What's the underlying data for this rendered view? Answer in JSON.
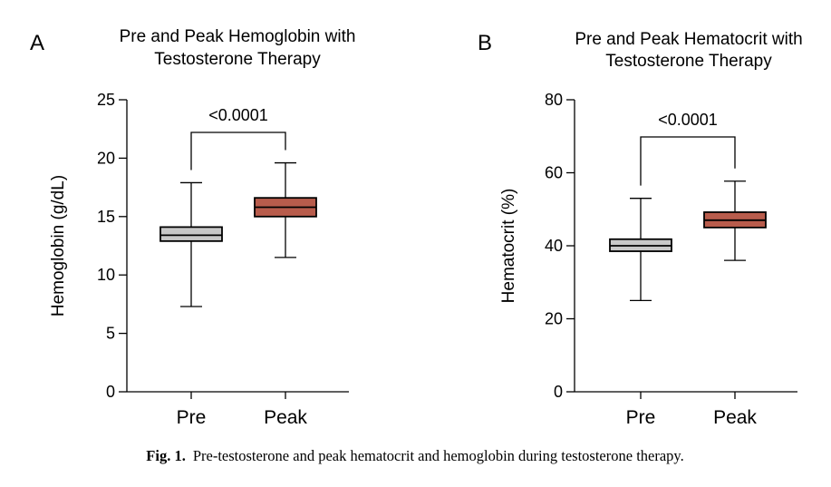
{
  "chart_data": [
    {
      "type": "box",
      "panel": "A",
      "title": [
        "Pre and Peak Hemoglobin with",
        "Testosterone Therapy"
      ],
      "xlabel": "",
      "ylabel": "Hemoglobin (g/dL)",
      "ylim": [
        0,
        25
      ],
      "yticks": [
        0,
        5,
        10,
        15,
        20,
        25
      ],
      "categories": [
        "Pre",
        "Peak"
      ],
      "boxes": [
        {
          "category": "Pre",
          "min": 7.3,
          "q1": 12.9,
          "median": 13.4,
          "q3": 14.1,
          "max": 17.9,
          "color": "#c8c8c8"
        },
        {
          "category": "Peak",
          "min": 11.5,
          "q1": 15.0,
          "median": 15.8,
          "q3": 16.6,
          "max": 19.6,
          "color": "#b85c4c"
        }
      ],
      "comparison": {
        "label": "<0.0001",
        "from": "Pre",
        "to": "Peak"
      }
    },
    {
      "type": "box",
      "panel": "B",
      "title": [
        "Pre and Peak Hematocrit with",
        "Testosterone Therapy"
      ],
      "xlabel": "",
      "ylabel": "Hematocrit (%)",
      "ylim": [
        0,
        80
      ],
      "yticks": [
        0,
        20,
        40,
        60,
        80
      ],
      "categories": [
        "Pre",
        "Peak"
      ],
      "boxes": [
        {
          "category": "Pre",
          "min": 25,
          "q1": 38.5,
          "median": 40,
          "q3": 41.8,
          "max": 53,
          "color": "#c8c8c8"
        },
        {
          "category": "Peak",
          "min": 36,
          "q1": 45,
          "median": 47,
          "q3": 49.2,
          "max": 57.7,
          "color": "#b85c4c"
        }
      ],
      "comparison": {
        "label": "<0.0001",
        "from": "Pre",
        "to": "Peak"
      }
    }
  ],
  "caption": {
    "label": "Fig. 1.",
    "text": "Pre-testosterone and peak hematocrit and hemoglobin during testosterone therapy."
  }
}
